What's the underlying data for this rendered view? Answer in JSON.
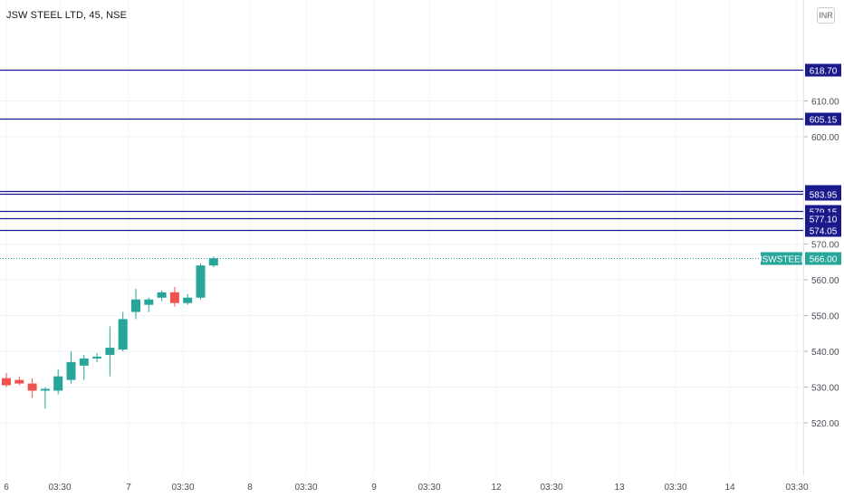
{
  "header": {
    "title": "JSW STEEL LTD, 45, NSE",
    "currency": "INR"
  },
  "colors": {
    "up": "#26a69a",
    "down": "#ef5350",
    "level": "#1a1a8c",
    "grid": "#f0f3fa",
    "text": "#131722"
  },
  "chart_data": {
    "type": "candlestick",
    "symbol": "JSWSTEEL",
    "last_price_label": "JSWSTEEL",
    "last_price": "566.00",
    "ylim": [
      514,
      627
    ],
    "y_ticks": [
      "520.00",
      "530.00",
      "540.00",
      "550.00",
      "560.00",
      "570.00",
      "600.00",
      "610.00"
    ],
    "x_ticks": [
      "6",
      "03:30",
      "7",
      "03:30",
      "8",
      "03:30",
      "9",
      "03:30",
      "12",
      "03:30",
      "13",
      "03:30",
      "14",
      "03:30"
    ],
    "levels": [
      "618.70",
      "605.15",
      "584.90",
      "583.95",
      "579.15",
      "577.10",
      "574.05"
    ],
    "candles": [
      {
        "o": 532.5,
        "h": 534,
        "l": 530,
        "c": 530.5
      },
      {
        "o": 532,
        "h": 533,
        "l": 530.5,
        "c": 531
      },
      {
        "o": 531,
        "h": 532.5,
        "l": 527,
        "c": 529
      },
      {
        "o": 529,
        "h": 530,
        "l": 524,
        "c": 529.5
      },
      {
        "o": 529,
        "h": 535,
        "l": 528,
        "c": 533
      },
      {
        "o": 532,
        "h": 540,
        "l": 531,
        "c": 537
      },
      {
        "o": 536,
        "h": 539,
        "l": 532,
        "c": 538
      },
      {
        "o": 538,
        "h": 539.5,
        "l": 537,
        "c": 538.5
      },
      {
        "o": 539,
        "h": 547,
        "l": 533,
        "c": 541
      },
      {
        "o": 540.5,
        "h": 551,
        "l": 540,
        "c": 549
      },
      {
        "o": 551,
        "h": 557.5,
        "l": 549,
        "c": 554.5
      },
      {
        "o": 553,
        "h": 555,
        "l": 551,
        "c": 554.5
      },
      {
        "o": 555,
        "h": 557,
        "l": 554,
        "c": 556.5
      },
      {
        "o": 556.5,
        "h": 558,
        "l": 552.5,
        "c": 553.5
      },
      {
        "o": 553.5,
        "h": 556,
        "l": 553,
        "c": 555
      },
      {
        "o": 555,
        "h": 564.5,
        "l": 554.5,
        "c": 564
      },
      {
        "o": 564,
        "h": 566.5,
        "l": 563.5,
        "c": 566
      }
    ]
  }
}
